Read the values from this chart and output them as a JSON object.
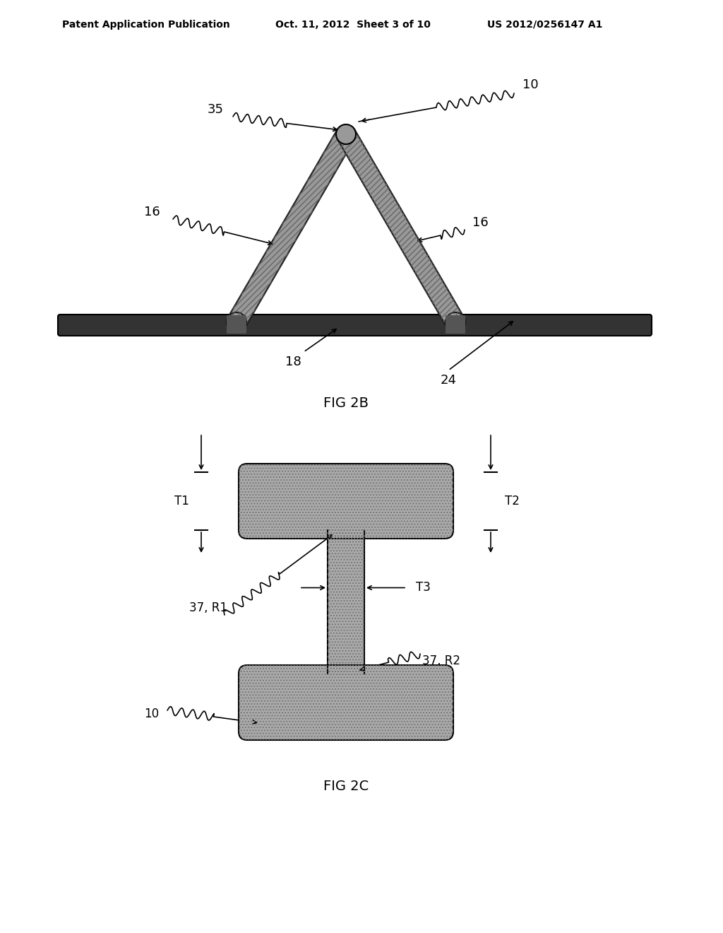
{
  "bg_color": "#ffffff",
  "header_text": "Patent Application Publication",
  "header_date": "Oct. 11, 2012  Sheet 3 of 10",
  "header_patent": "US 2012/0256147 A1",
  "fig2b_label": "FIG 2B",
  "fig2c_label": "FIG 2C",
  "shape_fill": "#999999",
  "shape_edge": "#000000",
  "wire_fill": "#333333",
  "ibeam_fill": "#aaaaaa",
  "hatch_color": "#555555"
}
